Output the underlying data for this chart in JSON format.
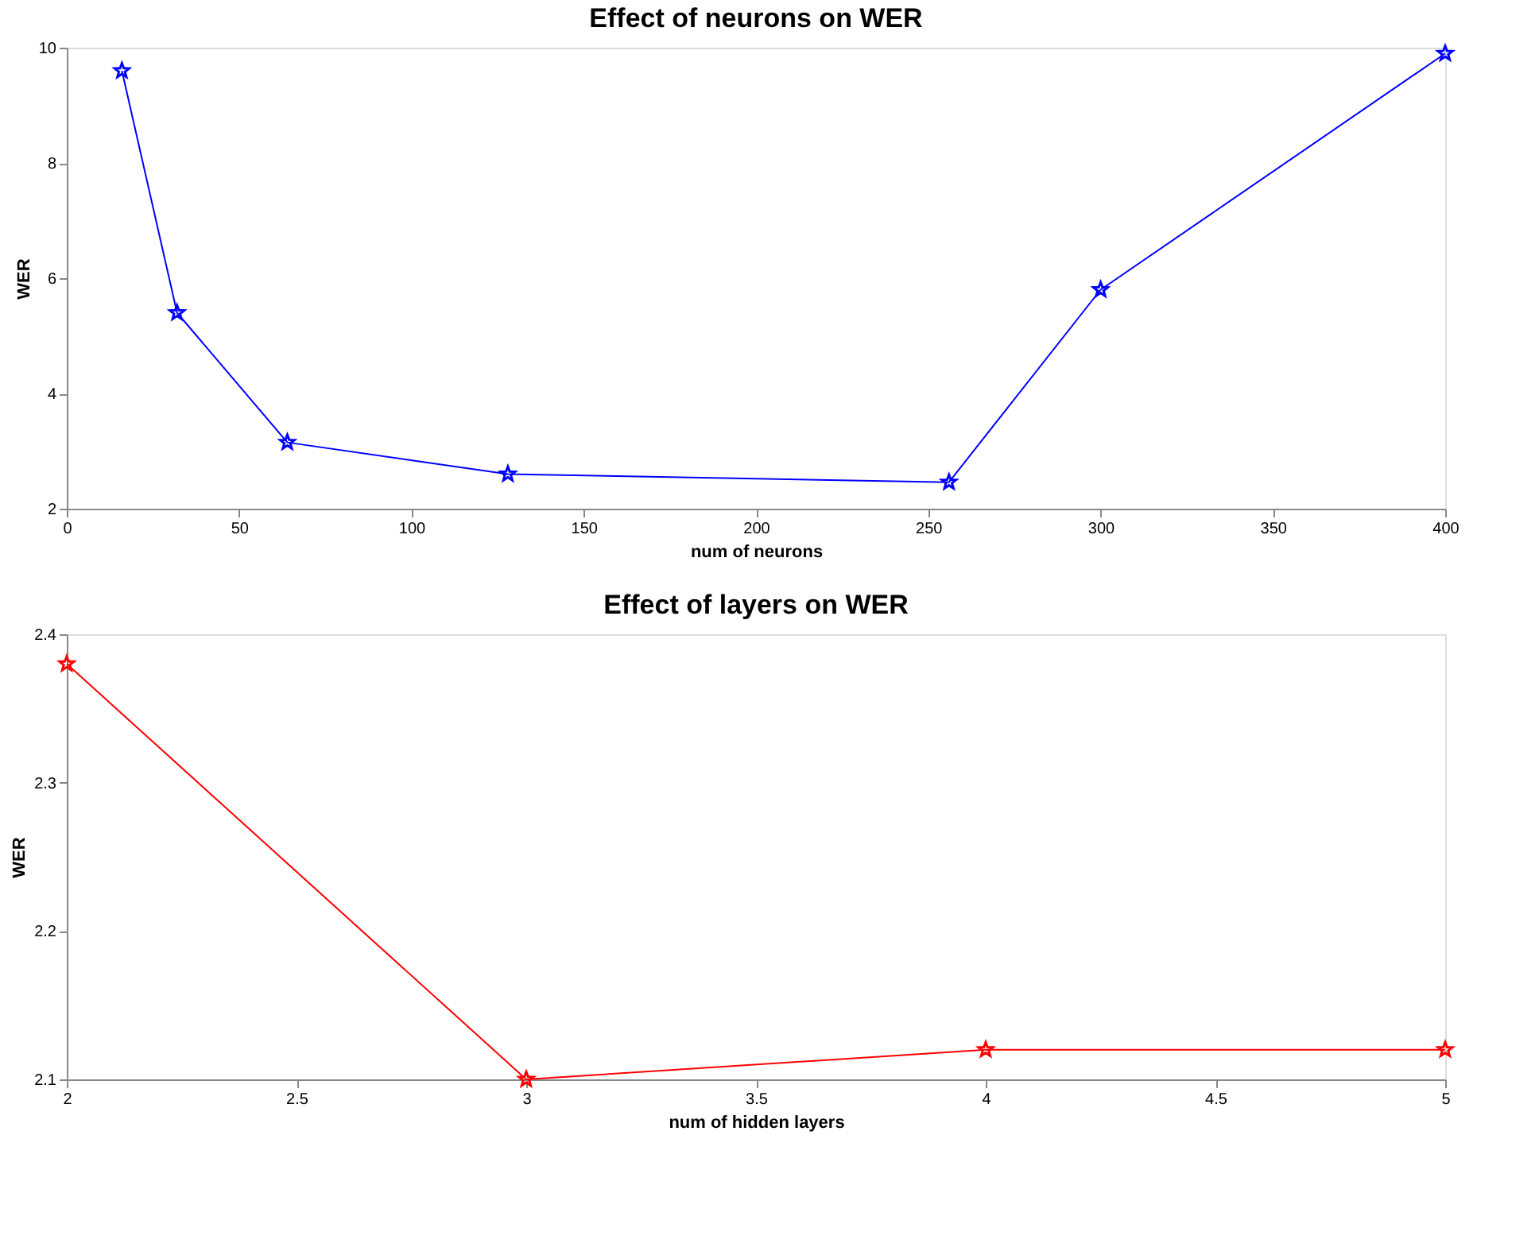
{
  "chart_data": [
    {
      "type": "line",
      "title": "Effect of neurons on WER",
      "xlabel": "num of neurons",
      "ylabel": "WER",
      "x": [
        16,
        32,
        64,
        128,
        256,
        300,
        400
      ],
      "series": [
        {
          "color": "#0000ff",
          "values": [
            9.6,
            5.4,
            3.15,
            2.6,
            2.46,
            5.8,
            9.9
          ]
        }
      ],
      "xlim": [
        0,
        400
      ],
      "xticks": [
        0,
        50,
        100,
        150,
        200,
        250,
        300,
        350,
        400
      ],
      "ylim": [
        2,
        10
      ],
      "yticks": [
        2,
        4,
        6,
        8,
        10
      ],
      "marker": "star",
      "line_style": "solid",
      "grid": false,
      "legend": false
    },
    {
      "type": "line",
      "title": "Effect of layers on WER",
      "xlabel": "num of hidden layers",
      "ylabel": "WER",
      "x": [
        2,
        3,
        4,
        5
      ],
      "series": [
        {
          "color": "#ff0000",
          "values": [
            2.38,
            2.1,
            2.12,
            2.12
          ]
        }
      ],
      "xlim": [
        2,
        5
      ],
      "xticks": [
        2,
        2.5,
        3,
        3.5,
        4,
        4.5,
        5
      ],
      "ylim": [
        2.1,
        2.4
      ],
      "yticks": [
        2.1,
        2.2,
        2.3,
        2.4
      ],
      "marker": "star",
      "line_style": "solid",
      "grid": false,
      "legend": false
    }
  ]
}
